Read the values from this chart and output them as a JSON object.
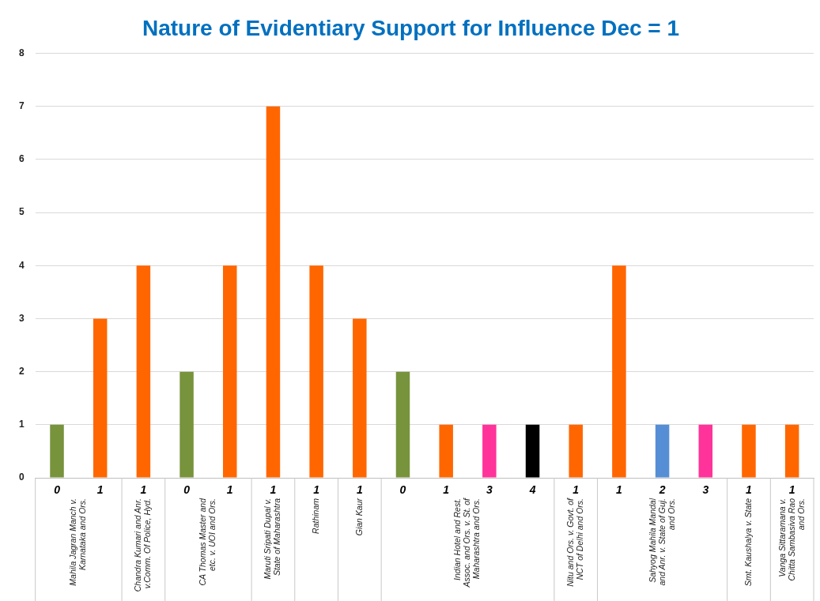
{
  "chart_data": {
    "type": "bar",
    "title": "Nature of Evidentiary Support for Influence Dec = 1",
    "categories": [
      "0",
      "1",
      "1",
      "0",
      "1",
      "1",
      "1",
      "1",
      "0",
      "1",
      "3",
      "4",
      "1",
      "1",
      "2",
      "3",
      "1",
      "1"
    ],
    "series": [
      {
        "name": "Mahila Jagran Manch v. Karnataka and Ors.",
        "values": [
          1,
          3,
          null,
          null,
          null,
          null,
          null,
          null,
          null,
          null,
          null,
          null,
          null,
          null,
          null,
          null,
          null,
          null
        ],
        "colors": [
          "#77933c",
          "#ff6600",
          null,
          null,
          null,
          null,
          null,
          null,
          null,
          null,
          null,
          null,
          null,
          null,
          null,
          null,
          null,
          null
        ]
      },
      {
        "name": "Chandra Kumari and Anr. v.Comm. Of Police, Hyd.",
        "values": [
          null,
          null,
          4,
          null,
          null,
          null,
          null,
          null,
          null,
          null,
          null,
          null,
          null,
          null,
          null,
          null,
          null,
          null
        ],
        "colors": [
          null,
          null,
          "#ff6600",
          null,
          null,
          null,
          null,
          null,
          null,
          null,
          null,
          null,
          null,
          null,
          null,
          null,
          null,
          null
        ]
      },
      {
        "name": "CA Thomas Master and etc. v. UOI and Ors.",
        "values": [
          null,
          null,
          null,
          2,
          4,
          null,
          null,
          null,
          null,
          null,
          null,
          null,
          null,
          null,
          null,
          null,
          null,
          null
        ],
        "colors": [
          null,
          null,
          null,
          "#77933c",
          "#ff6600",
          null,
          null,
          null,
          null,
          null,
          null,
          null,
          null,
          null,
          null,
          null,
          null,
          null
        ]
      },
      {
        "name": "Maruti Sripati Dupal v. State of Maharashtra",
        "values": [
          null,
          null,
          null,
          null,
          null,
          7,
          null,
          null,
          null,
          null,
          null,
          null,
          null,
          null,
          null,
          null,
          null,
          null
        ],
        "colors": [
          null,
          null,
          null,
          null,
          null,
          "#ff6600",
          null,
          null,
          null,
          null,
          null,
          null,
          null,
          null,
          null,
          null,
          null,
          null
        ]
      },
      {
        "name": "Rathinam",
        "values": [
          null,
          null,
          null,
          null,
          null,
          null,
          4,
          null,
          null,
          null,
          null,
          null,
          null,
          null,
          null,
          null,
          null,
          null
        ],
        "colors": [
          null,
          null,
          null,
          null,
          null,
          null,
          "#ff6600",
          null,
          null,
          null,
          null,
          null,
          null,
          null,
          null,
          null,
          null,
          null
        ]
      },
      {
        "name": "Gian Kaur",
        "values": [
          null,
          null,
          null,
          null,
          null,
          null,
          null,
          3,
          null,
          null,
          null,
          null,
          null,
          null,
          null,
          null,
          null,
          null
        ],
        "colors": [
          null,
          null,
          null,
          null,
          null,
          null,
          null,
          "#ff6600",
          null,
          null,
          null,
          null,
          null,
          null,
          null,
          null,
          null,
          null
        ]
      },
      {
        "name": "Indian Hotel and Rest. Assoc. and Ors. v. St. of Maharashtra and Ors.",
        "values": [
          null,
          null,
          null,
          null,
          null,
          null,
          null,
          null,
          2,
          1,
          1,
          1,
          null,
          null,
          null,
          null,
          null,
          null
        ],
        "colors": [
          null,
          null,
          null,
          null,
          null,
          null,
          null,
          null,
          "#77933c",
          "#ff6600",
          "#ff3399",
          "#000000",
          null,
          null,
          null,
          null,
          null,
          null
        ]
      },
      {
        "name": "Nitu and Ors. v. Govt. of NCT of Delhi and Ors.",
        "values": [
          null,
          null,
          null,
          null,
          null,
          null,
          null,
          null,
          null,
          null,
          null,
          null,
          1,
          null,
          null,
          null,
          null,
          null
        ],
        "colors": [
          null,
          null,
          null,
          null,
          null,
          null,
          null,
          null,
          null,
          null,
          null,
          null,
          "#ff6600",
          null,
          null,
          null,
          null,
          null
        ]
      },
      {
        "name": "Sahyog Mahila Mandal and Anr. v. State of Guj. and Ors.",
        "values": [
          null,
          null,
          null,
          null,
          null,
          null,
          null,
          null,
          null,
          null,
          null,
          null,
          null,
          4,
          1,
          1,
          null,
          null
        ],
        "colors": [
          null,
          null,
          null,
          null,
          null,
          null,
          null,
          null,
          null,
          null,
          null,
          null,
          null,
          "#ff6600",
          "#558ed5",
          "#ff3399",
          null,
          null
        ]
      },
      {
        "name": "Smt. Kaushalya v. State",
        "values": [
          null,
          null,
          null,
          null,
          null,
          null,
          null,
          null,
          null,
          null,
          null,
          null,
          null,
          null,
          null,
          null,
          1,
          null
        ],
        "colors": [
          null,
          null,
          null,
          null,
          null,
          null,
          null,
          null,
          null,
          null,
          null,
          null,
          null,
          null,
          null,
          null,
          "#ff6600",
          null
        ]
      },
      {
        "name": "Vanga Sittaramana v. Chitta Sambasiva Rao and Ors.",
        "values": [
          null,
          null,
          null,
          null,
          null,
          null,
          null,
          null,
          null,
          null,
          null,
          null,
          null,
          null,
          null,
          null,
          null,
          1
        ],
        "colors": [
          null,
          null,
          null,
          null,
          null,
          null,
          null,
          null,
          null,
          null,
          null,
          null,
          null,
          null,
          null,
          null,
          null,
          "#ff6600"
        ]
      }
    ],
    "ylim": [
      0,
      8
    ],
    "yticks": [
      0,
      1,
      2,
      3,
      4,
      5,
      6,
      7,
      8
    ],
    "grid": "y",
    "legend": false
  }
}
